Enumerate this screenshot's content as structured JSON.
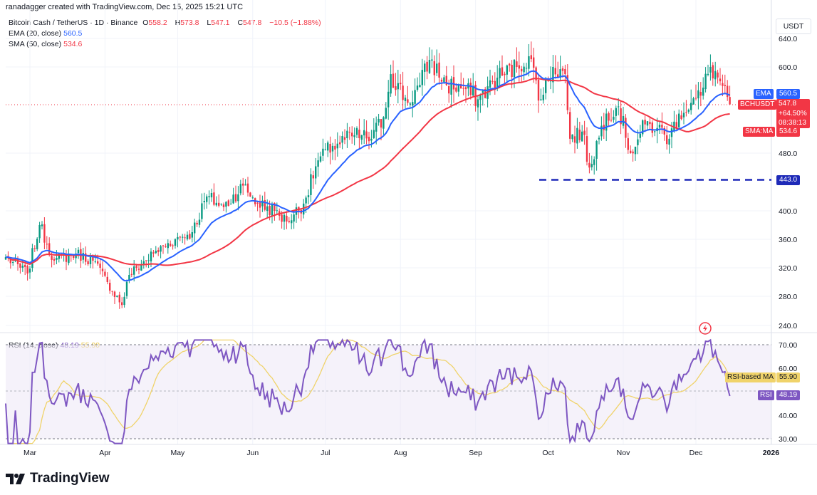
{
  "header": {
    "text": "ranadagger created with TradingView.com, Dec 15, 2025 15:21 UTC"
  },
  "legend": {
    "symbol": "Bitcoin Cash / TetherUS · 1D · Binance",
    "o_label": "O",
    "o": "558.2",
    "h_label": "H",
    "h": "573.8",
    "l_label": "L",
    "l": "547.1",
    "c_label": "C",
    "c": "547.8",
    "change": "−10.5 (−1.88%)",
    "ema_label": "EMA (20, close)",
    "ema_value": "560.5",
    "sma_label": "SMA (50, close)",
    "sma_value": "534.6",
    "rsi_label": "RSI (14, close)",
    "rsi_value": "48.19",
    "rsi_ma_value": "55.90"
  },
  "currency": "USDT",
  "tags": {
    "ema": "EMA",
    "ema_value": "560.5",
    "symbol": "BCHUSDT",
    "price": "547.8",
    "pct": "+64.50%",
    "timer": "08:38:13",
    "sma": "SMA:MA",
    "sma_value": "534.6",
    "support": "443.0",
    "rsi_ma": "RSI-based MA",
    "rsi_ma_value": "55.90",
    "rsi": "RSI",
    "rsi_value": "48.19"
  },
  "brand": {
    "name": "TradingView"
  },
  "colors": {
    "up": "#089981",
    "down": "#f23645",
    "ema": "#2962ff",
    "sma": "#f23645",
    "rsi": "#7e57c2",
    "rsi_ma": "#f0d36a",
    "support": "#1e2ab8"
  },
  "chart_data": {
    "type": "candlestick",
    "title": "Bitcoin Cash / TetherUS · 1D · Binance",
    "y_ticks": [
      "640.0",
      "600.0",
      "480.0",
      "400.0",
      "360.0",
      "320.0",
      "280.0",
      "240.0"
    ],
    "ylim": [
      220,
      660
    ],
    "x_ticks": [
      "Mar",
      "Apr",
      "May",
      "Jun",
      "Jul",
      "Aug",
      "Sep",
      "Oct",
      "Nov",
      "Dec",
      "2026"
    ],
    "rsi_ticks": [
      "70.00",
      "60.00",
      "40.00",
      "30.00"
    ],
    "rsi_ylim": [
      28,
      72
    ],
    "support_level": 443.0,
    "last_close": 547.8,
    "ema20_last": 560.5,
    "sma50_last": 534.6,
    "rsi_last": 48.19,
    "rsi_ma_last": 55.9,
    "close_anchors": [
      [
        "2025-02-19",
        335
      ],
      [
        "2025-02-28",
        312
      ],
      [
        "2025-03-05",
        380
      ],
      [
        "2025-03-11",
        330
      ],
      [
        "2025-03-20",
        340
      ],
      [
        "2025-03-27",
        330
      ],
      [
        "2025-04-02",
        300
      ],
      [
        "2025-04-08",
        268
      ],
      [
        "2025-04-11",
        310
      ],
      [
        "2025-04-21",
        340
      ],
      [
        "2025-04-30",
        360
      ],
      [
        "2025-05-07",
        370
      ],
      [
        "2025-05-13",
        420
      ],
      [
        "2025-05-20",
        405
      ],
      [
        "2025-05-28",
        435
      ],
      [
        "2025-06-03",
        410
      ],
      [
        "2025-06-10",
        400
      ],
      [
        "2025-06-15",
        385
      ],
      [
        "2025-06-22",
        410
      ],
      [
        "2025-06-28",
        470
      ],
      [
        "2025-07-04",
        490
      ],
      [
        "2025-07-13",
        505
      ],
      [
        "2025-07-20",
        500
      ],
      [
        "2025-07-25",
        530
      ],
      [
        "2025-07-28",
        590
      ],
      [
        "2025-08-04",
        550
      ],
      [
        "2025-08-09",
        575
      ],
      [
        "2025-08-13",
        610
      ],
      [
        "2025-08-20",
        575
      ],
      [
        "2025-08-27",
        570
      ],
      [
        "2025-09-02",
        555
      ],
      [
        "2025-09-10",
        585
      ],
      [
        "2025-09-18",
        600
      ],
      [
        "2025-09-23",
        615
      ],
      [
        "2025-09-28",
        555
      ],
      [
        "2025-10-03",
        600
      ],
      [
        "2025-10-08",
        590
      ],
      [
        "2025-10-10",
        500
      ],
      [
        "2025-10-15",
        510
      ],
      [
        "2025-10-18",
        460
      ],
      [
        "2025-10-25",
        535
      ],
      [
        "2025-10-30",
        545
      ],
      [
        "2025-11-04",
        480
      ],
      [
        "2025-11-10",
        520
      ],
      [
        "2025-11-15",
        515
      ],
      [
        "2025-11-20",
        500
      ],
      [
        "2025-11-24",
        535
      ],
      [
        "2025-11-29",
        550
      ],
      [
        "2025-12-03",
        560
      ],
      [
        "2025-12-07",
        600
      ],
      [
        "2025-12-11",
        580
      ],
      [
        "2025-12-14",
        558.2
      ],
      [
        "2025-12-15",
        547.8
      ]
    ]
  }
}
